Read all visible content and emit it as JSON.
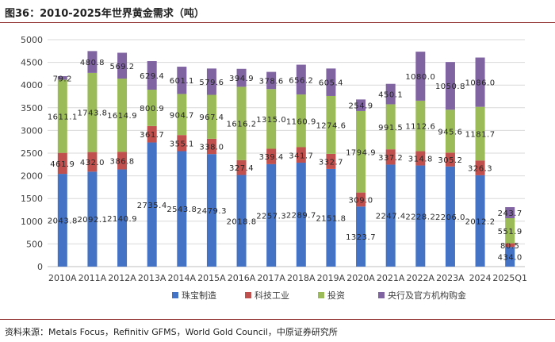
{
  "header": {
    "title": "图36：2010-2025年世界黄金需求（吨）"
  },
  "footer": {
    "source": "资料来源：Metals Focus，Refinitiv GFMS，World Gold Council，中原证券研究所"
  },
  "chart_data": {
    "type": "bar",
    "stacked": true,
    "title": "图36：2010-2025年世界黄金需求（吨）",
    "xlabel": "",
    "ylabel": "",
    "ylim": [
      0,
      5000
    ],
    "yticks": [
      0,
      500,
      1000,
      1500,
      2000,
      2500,
      3000,
      3500,
      4000,
      4500,
      5000
    ],
    "grid": true,
    "legend_position": "bottom",
    "categories": [
      "2010A",
      "2011A",
      "2012A",
      "2013A",
      "2014A",
      "2015A",
      "2016A",
      "2017A",
      "2018A",
      "2019A",
      "2020A",
      "2021A",
      "2022A",
      "2023A",
      "2024",
      "2025Q1"
    ],
    "series": [
      {
        "name": "珠宝制造",
        "color": "#4472c4",
        "values": [
          2043.8,
          2092.1,
          2140.9,
          2735.4,
          2543.8,
          2479.3,
          2018.8,
          2257.3,
          2289.7,
          2151.8,
          1323.7,
          2247.4,
          2228.2,
          2206.0,
          2012.2,
          434.0
        ],
        "labels": [
          "2043.8",
          "2092.1",
          "2140.9",
          "2735.4",
          "2543.8",
          "2479.3",
          "2018.8",
          "2257.3",
          "2289.7",
          "2151.8",
          "1323.7",
          "2247.4",
          "2228.2",
          "2206.0",
          "2012.2",
          "434.0"
        ]
      },
      {
        "name": "科技工业",
        "color": "#c0504d",
        "values": [
          461.9,
          432.0,
          386.8,
          361.7,
          355.1,
          338.0,
          327.4,
          339.4,
          341.7,
          332.7,
          309.0,
          337.2,
          314.8,
          305.2,
          326.3,
          80.5
        ],
        "labels": [
          "461.9",
          "432.0",
          "386.8",
          "361.7",
          "355.1",
          "338.0",
          "327.4",
          "339.4",
          "341.7",
          "332.7",
          "309.0",
          "337.2",
          "314.8",
          "305.2",
          "326.3",
          "80.5"
        ]
      },
      {
        "name": "投资",
        "color": "#9bbb59",
        "values": [
          1611.1,
          1743.8,
          1614.9,
          800.9,
          904.7,
          967.4,
          1616.2,
          1315.0,
          1160.9,
          1274.6,
          1794.9,
          991.5,
          1112.6,
          945.6,
          1181.7,
          551.9
        ],
        "labels": [
          "1611.1",
          "1743.8",
          "1614.9",
          "800.9",
          "904.7",
          "967.4",
          "1616.2",
          "1315.0",
          "1160.9",
          "1274.6",
          "1794.9",
          "991.5",
          "1112.6",
          "945.6",
          "1181.7",
          "551.9"
        ]
      },
      {
        "name": "央行及官方机构购金",
        "color": "#8064a2",
        "values": [
          79.2,
          480.8,
          569.2,
          629.4,
          601.1,
          579.6,
          394.9,
          378.6,
          656.2,
          605.4,
          254.9,
          450.1,
          1080.0,
          1050.8,
          1086.0,
          243.7
        ],
        "labels": [
          "79.2",
          "480.8",
          "569.2",
          "629.4",
          "601.1",
          "579.6",
          "394.9",
          "378.6",
          "656.2",
          "605.4",
          "254.9",
          "450.1",
          "1080.0",
          "1050.8",
          "1086.0",
          "243.7"
        ]
      }
    ]
  }
}
